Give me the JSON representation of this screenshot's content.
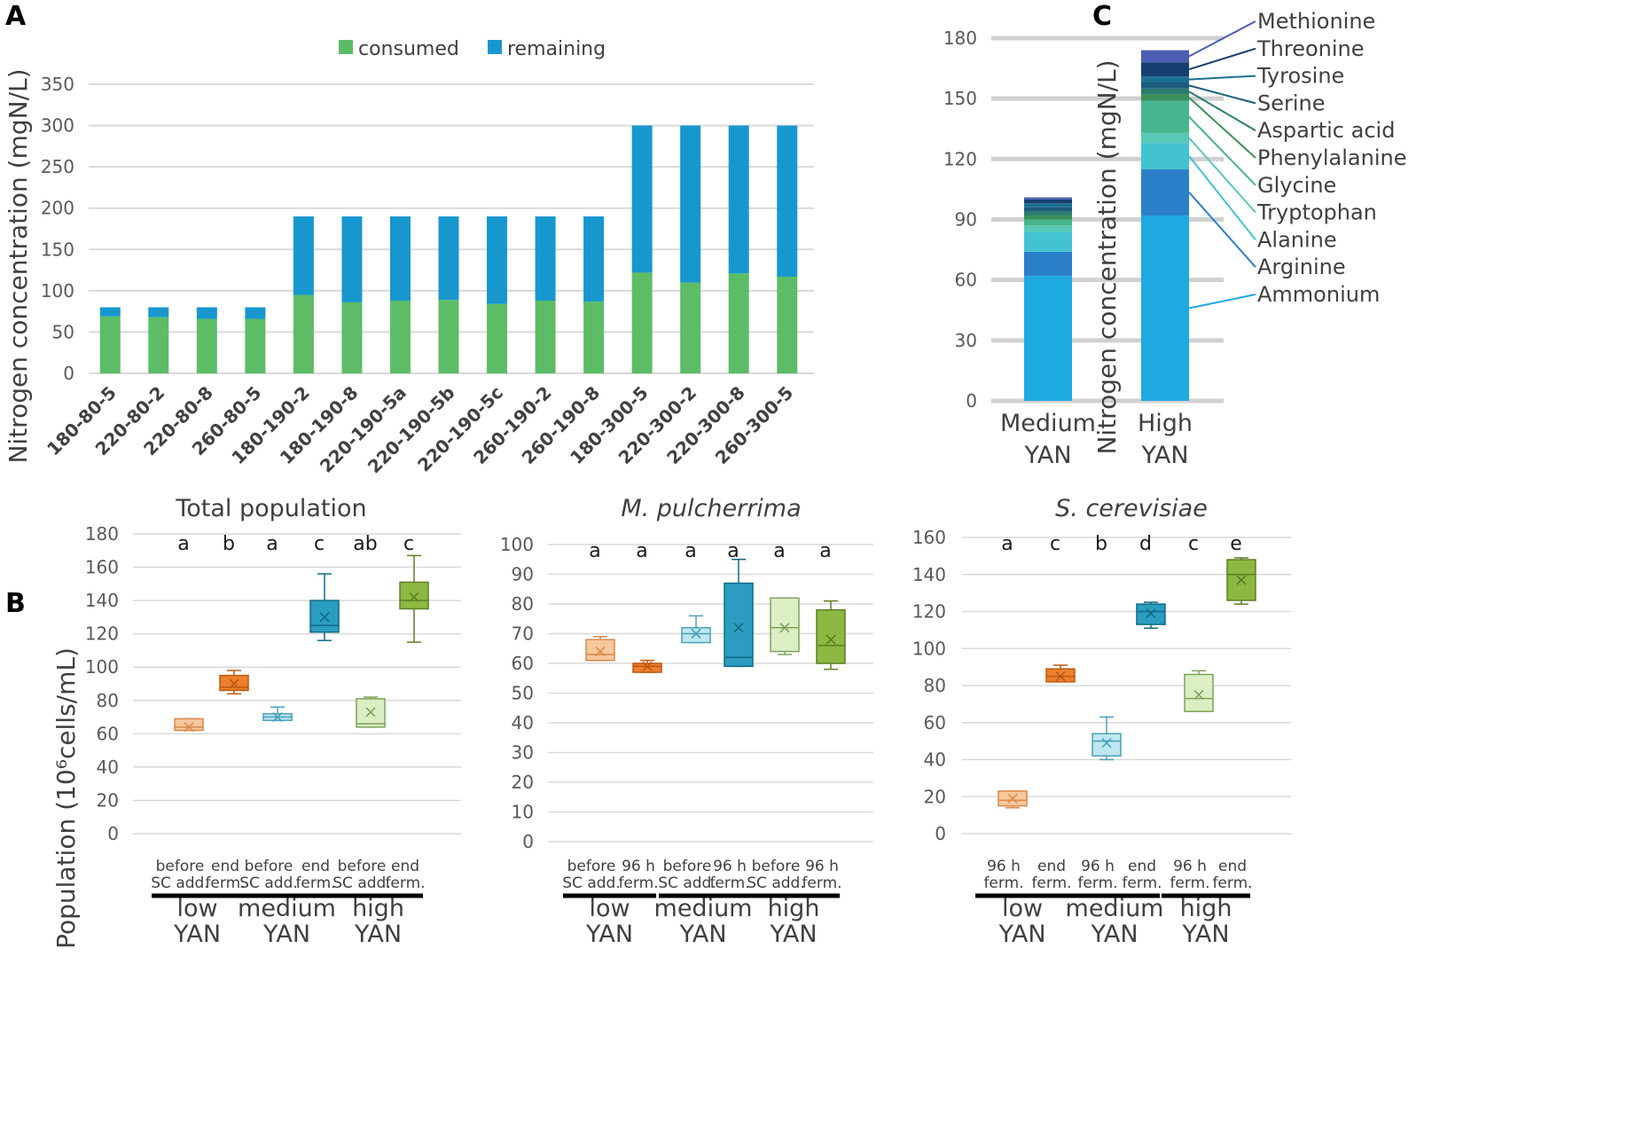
{
  "panels": {
    "a": "A",
    "b": "B",
    "c": "C"
  },
  "colors": {
    "consumed": "#5cbd66",
    "remaining": "#1897cf",
    "low_light": "#f7c79d",
    "low_light_stroke": "#d9894a",
    "low_dark": "#ee7f2b",
    "low_dark_stroke": "#bb5a12",
    "med_light": "#bde7f1",
    "med_light_stroke": "#4ba0b8",
    "med_dark": "#2a9dc0",
    "med_dark_stroke": "#0f6a86",
    "high_light": "#dbeec4",
    "high_light_stroke": "#7ea25a",
    "high_dark": "#8db842",
    "high_dark_stroke": "#5d7e24"
  },
  "chart_data": [
    {
      "id": "A",
      "type": "bar",
      "stacked": true,
      "title": "",
      "ylabel": "Nitrogen concentration (mgN/L)",
      "xlabel": "",
      "ylim": [
        0,
        350
      ],
      "yticks": [
        "0",
        "50",
        "100",
        "150",
        "200",
        "250",
        "300",
        "350"
      ],
      "legend": {
        "position": "top",
        "items": [
          "consumed",
          "remaining"
        ]
      },
      "categories": [
        "180-80-5",
        "220-80-2",
        "220-80-8",
        "260-80-5",
        "180-190-2",
        "180-190-8",
        "220-190-5a",
        "220-190-5b",
        "220-190-5c",
        "260-190-2",
        "260-190-8",
        "180-300-5",
        "220-300-2",
        "220-300-8",
        "260-300-5"
      ],
      "series": [
        {
          "name": "consumed",
          "values": [
            69,
            68,
            66,
            66,
            95,
            86,
            88,
            89,
            84,
            88,
            87,
            122,
            110,
            121,
            117
          ]
        },
        {
          "name": "remaining",
          "values": [
            11,
            12,
            14,
            14,
            95,
            104,
            102,
            101,
            106,
            102,
            103,
            178,
            190,
            179,
            183
          ]
        }
      ]
    },
    {
      "id": "B1",
      "type": "box",
      "title": "Total population",
      "ylabel": "Population (10⁶cells/mL)",
      "ylim": [
        0,
        180
      ],
      "yticks": [
        "0",
        "20",
        "40",
        "60",
        "80",
        "100",
        "120",
        "140",
        "160",
        "180"
      ],
      "x_top": [
        "before\nSC add.",
        "end\nferm.",
        "before\nSC add.",
        "end\nferm.",
        "before\nSC add.",
        "end\nferm."
      ],
      "groups": [
        "low\nYAN",
        "medium\nYAN",
        "high\nYAN"
      ],
      "boxes": [
        {
          "min": 62,
          "q1": 62,
          "median": 64,
          "q3": 69,
          "max": 69,
          "mean": 64,
          "letter": "a"
        },
        {
          "min": 84,
          "q1": 86,
          "median": 88,
          "q3": 95,
          "max": 98,
          "mean": 90,
          "letter": "b"
        },
        {
          "min": 68,
          "q1": 68,
          "median": 70,
          "q3": 72,
          "max": 76,
          "mean": 70,
          "letter": "a"
        },
        {
          "min": 116,
          "q1": 121,
          "median": 125,
          "q3": 140,
          "max": 156,
          "mean": 130,
          "letter": "c"
        },
        {
          "min": 64,
          "q1": 64,
          "median": 66,
          "q3": 81,
          "max": 82,
          "mean": 73,
          "letter": "ab"
        },
        {
          "min": 115,
          "q1": 135,
          "median": 140,
          "q3": 151,
          "max": 167,
          "mean": 142,
          "letter": "c"
        }
      ]
    },
    {
      "id": "B2",
      "type": "box",
      "title": "M. pulcherrima",
      "ylim": [
        0,
        100
      ],
      "yticks": [
        "0",
        "10",
        "20",
        "30",
        "40",
        "50",
        "60",
        "70",
        "80",
        "90",
        "100"
      ],
      "x_top": [
        "before\nSC add.",
        "96 h\nferm.",
        "before\nSC add.",
        "96 h\nferm.",
        "before\nSC add.",
        "96 h\nferm."
      ],
      "groups": [
        "low\nYAN",
        "medium\nYAN",
        "high\nYAN"
      ],
      "boxes": [
        {
          "min": 61,
          "q1": 61,
          "median": 63,
          "q3": 68,
          "max": 69,
          "mean": 64,
          "letter": "a"
        },
        {
          "min": 57,
          "q1": 57,
          "median": 59,
          "q3": 60,
          "max": 61,
          "mean": 59,
          "letter": "a"
        },
        {
          "min": 67,
          "q1": 67,
          "median": 70,
          "q3": 72,
          "max": 76,
          "mean": 70,
          "letter": "a"
        },
        {
          "min": 59,
          "q1": 59,
          "median": 62,
          "q3": 87,
          "max": 95,
          "mean": 72,
          "letter": "a"
        },
        {
          "min": 63,
          "q1": 64,
          "median": 72,
          "q3": 82,
          "max": 82,
          "mean": 72,
          "letter": "a"
        },
        {
          "min": 58,
          "q1": 60,
          "median": 66,
          "q3": 78,
          "max": 81,
          "mean": 68,
          "letter": "a"
        }
      ]
    },
    {
      "id": "B3",
      "type": "box",
      "title": "S. cerevisiae",
      "ylim": [
        0,
        160
      ],
      "yticks": [
        "0",
        "20",
        "40",
        "60",
        "80",
        "100",
        "120",
        "140",
        "160"
      ],
      "x_top": [
        "96 h\nferm.",
        "end\nferm.",
        "96 h\nferm.",
        "end\nferm.",
        "96 h\nferm.",
        "end\nferm."
      ],
      "groups": [
        "low\nYAN",
        "medium\nYAN",
        "high\nYAN"
      ],
      "boxes": [
        {
          "min": 14,
          "q1": 15,
          "median": 18,
          "q3": 23,
          "max": 23,
          "mean": 19,
          "letter": "a"
        },
        {
          "min": 82,
          "q1": 82,
          "median": 85,
          "q3": 89,
          "max": 91,
          "mean": 85,
          "letter": "c"
        },
        {
          "min": 40,
          "q1": 42,
          "median": 50,
          "q3": 54,
          "max": 63,
          "mean": 49,
          "letter": "b"
        },
        {
          "min": 111,
          "q1": 113,
          "median": 120,
          "q3": 124,
          "max": 125,
          "mean": 119,
          "letter": "d"
        },
        {
          "min": 66,
          "q1": 66,
          "median": 73,
          "q3": 86,
          "max": 88,
          "mean": 75,
          "letter": "c"
        },
        {
          "min": 124,
          "q1": 126,
          "median": 140,
          "q3": 148,
          "max": 149,
          "mean": 137,
          "letter": "e"
        }
      ]
    },
    {
      "id": "C",
      "type": "bar",
      "stacked": true,
      "ylabel": "Nitrogen concentration (mgN/L)",
      "ylim": [
        0,
        180
      ],
      "yticks": [
        "0",
        "30",
        "60",
        "90",
        "120",
        "150",
        "180"
      ],
      "categories": [
        "Medium\nYAN",
        "High\nYAN"
      ],
      "series": [
        {
          "name": "Ammonium",
          "color": "#1ea9e1",
          "values": [
            62,
            92
          ]
        },
        {
          "name": "Arginine",
          "color": "#2a7fc9",
          "values": [
            12,
            23
          ]
        },
        {
          "name": "Alanine",
          "color": "#43c3d1",
          "values": [
            10,
            13
          ]
        },
        {
          "name": "Tryptophan",
          "color": "#58c9b6",
          "values": [
            3,
            5
          ]
        },
        {
          "name": "Glycine",
          "color": "#47b58d",
          "values": [
            3,
            16
          ]
        },
        {
          "name": "Phenylalanine",
          "color": "#3c8f58",
          "values": [
            2,
            3
          ]
        },
        {
          "name": "Aspartic acid",
          "color": "#2c7c6d",
          "values": [
            2,
            3
          ]
        },
        {
          "name": "Serine",
          "color": "#1c5d7f",
          "values": [
            2,
            3
          ]
        },
        {
          "name": "Tyrosine",
          "color": "#1b6f92",
          "values": [
            2,
            3
          ]
        },
        {
          "name": "Threonine",
          "color": "#163e6e",
          "values": [
            2,
            7
          ]
        },
        {
          "name": "Methionine",
          "color": "#4a5db3",
          "values": [
            1,
            6
          ]
        }
      ],
      "label_names": [
        "Methionine",
        "Threonine",
        "Tyrosine",
        "Serine",
        "Aspartic acid",
        "Phenylalanine",
        "Glycine",
        "Tryptophan",
        "Alanine",
        "Arginine",
        "Ammonium"
      ]
    }
  ]
}
